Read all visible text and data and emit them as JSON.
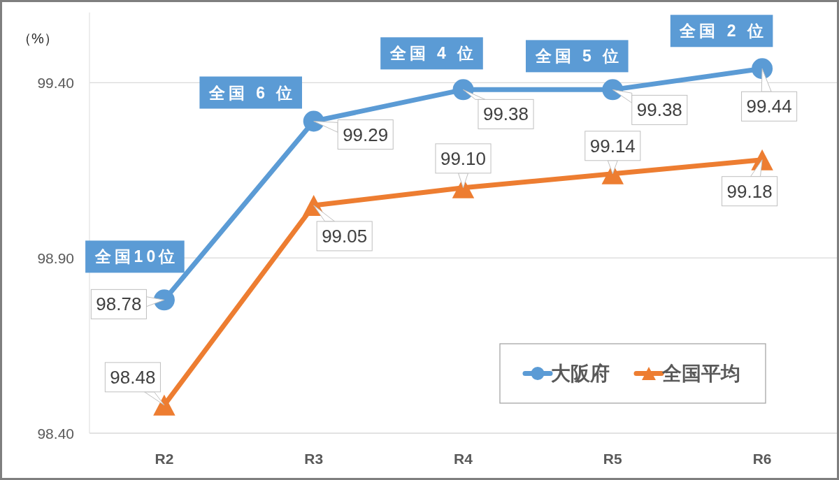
{
  "chart_data": {
    "type": "line",
    "ylabel": "（%）",
    "categories": [
      "R2",
      "R3",
      "R4",
      "R5",
      "R6"
    ],
    "series": [
      {
        "name": "大阪府",
        "color": "#5b9bd5",
        "marker": "circle",
        "values": [
          98.78,
          99.29,
          99.38,
          99.38,
          99.44
        ],
        "value_labels": [
          "98.78",
          "99.29",
          "99.38",
          "99.38",
          "99.44"
        ]
      },
      {
        "name": "全国平均",
        "color": "#ed7d31",
        "marker": "triangle",
        "values": [
          98.48,
          99.05,
          99.1,
          99.14,
          99.18
        ],
        "value_labels": [
          "98.48",
          "99.05",
          "99.10",
          "99.14",
          "99.18"
        ]
      }
    ],
    "ylim": [
      98.4,
      99.6
    ],
    "yticks": [
      {
        "value": 98.4,
        "label": "98.40"
      },
      {
        "value": 98.9,
        "label": "98.90"
      },
      {
        "value": 99.4,
        "label": "99.40"
      }
    ],
    "grid": "y",
    "legend": "bottom right",
    "line_style": "solid",
    "annotations": [
      {
        "text": "全国10位",
        "x": "R2",
        "y": 98.78
      },
      {
        "text": "全国 6 位",
        "x": "R3",
        "y": 99.29
      },
      {
        "text": "全国 4 位",
        "x": "R4",
        "y": 99.38
      },
      {
        "text": "全国 5 位",
        "x": "R5",
        "y": 99.38
      },
      {
        "text": "全国 2 位",
        "x": "R6",
        "y": 99.44
      }
    ]
  }
}
